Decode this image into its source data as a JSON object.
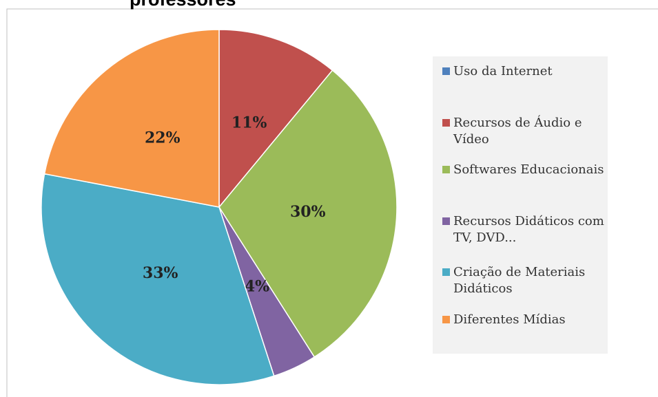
{
  "chart_data": {
    "type": "pie",
    "title": "professores",
    "categories": [
      "Uso da Internet",
      "Recursos de Áudio e Vídeo",
      "Softwares Educacionais",
      "Recursos Didáticos com TV, DVD...",
      "Criação de Materiais Didáticos",
      "Diferentes Mídias"
    ],
    "values": [
      0,
      11,
      30,
      4,
      33,
      22
    ],
    "value_labels": [
      null,
      "11%",
      "30%",
      "4%",
      "33%",
      "22%"
    ],
    "colors": [
      "#4f81bd",
      "#c0504d",
      "#9bbb59",
      "#8064a2",
      "#4bacc6",
      "#f79646"
    ],
    "legend": "right"
  }
}
